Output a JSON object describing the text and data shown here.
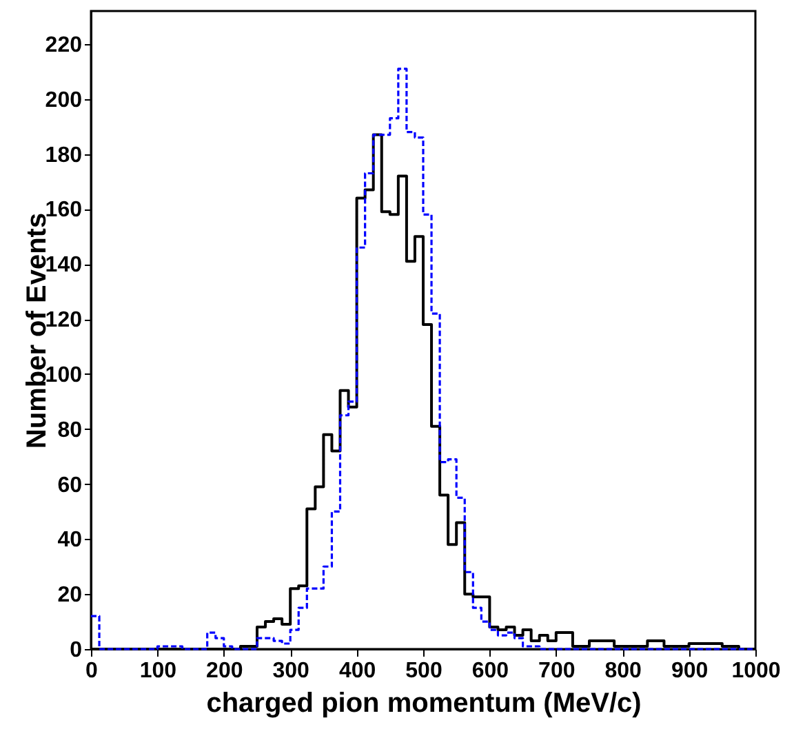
{
  "chart_data": {
    "type": "histogram",
    "xlabel": "charged pion momentum (MeV/c)",
    "ylabel": "Number of Events",
    "bins": [
      0,
      12.5,
      25,
      37.5,
      50,
      62.5,
      75,
      87.5,
      100,
      112.5,
      125,
      137.5,
      150,
      162.5,
      175,
      187.5,
      200,
      212.5,
      225,
      237.5,
      250,
      262.5,
      275,
      287.5,
      300,
      312.5,
      325,
      337.5,
      350,
      362.5,
      375,
      387.5,
      400,
      412.5,
      425,
      437.5,
      450,
      462.5,
      475,
      487.5,
      500,
      512.5,
      525,
      537.5,
      550,
      562.5,
      575,
      587.5,
      600,
      612.5,
      625,
      637.5,
      650,
      662.5,
      675,
      687.5,
      700,
      712.5,
      725,
      737.5,
      750,
      762.5,
      775,
      787.5,
      800,
      812.5,
      825,
      837.5,
      850,
      862.5,
      875,
      887.5,
      900,
      912.5,
      925,
      937.5,
      950,
      962.5,
      975,
      987.5,
      1000
    ],
    "series": [
      {
        "color": "#000000",
        "line_style": "solid",
        "values": [
          0,
          0,
          0,
          0,
          0,
          0,
          0,
          0,
          0,
          0,
          0,
          0,
          0,
          0,
          0,
          0,
          0,
          0,
          1,
          1,
          8,
          10,
          11,
          9,
          22,
          23,
          51,
          59,
          78,
          72,
          94,
          88,
          164,
          167,
          187,
          159,
          158,
          172,
          141,
          150,
          118,
          81,
          56,
          38,
          46,
          20,
          19,
          19,
          8,
          7,
          8,
          5,
          7,
          3,
          5,
          3,
          6,
          6,
          1,
          1,
          3,
          3,
          3,
          1,
          1,
          1,
          1,
          3,
          3,
          1,
          1,
          1,
          2,
          2,
          2,
          2,
          1,
          1,
          0,
          0
        ]
      },
      {
        "color": "#0000ff",
        "line_style": "dashed",
        "values": [
          12,
          0,
          0,
          0,
          0,
          0,
          0,
          0,
          1,
          1,
          1,
          0,
          0,
          0,
          6,
          4,
          1,
          0,
          0,
          0,
          4,
          4,
          3,
          2,
          7,
          15,
          22,
          22,
          30,
          50,
          85,
          90,
          146,
          173,
          187,
          187,
          193,
          211,
          188,
          186,
          158,
          122,
          68,
          69,
          55,
          28,
          15,
          10,
          7,
          5,
          6,
          4,
          1,
          1,
          0,
          0,
          0,
          0,
          0,
          0,
          0,
          0,
          0,
          0,
          0,
          0,
          0,
          0,
          0,
          0,
          0,
          0,
          0,
          0,
          0,
          0,
          0,
          0,
          0,
          0
        ]
      }
    ],
    "xlim": [
      0,
      1000
    ],
    "xticks": [
      0,
      100,
      200,
      300,
      400,
      500,
      600,
      700,
      800,
      900,
      1000
    ],
    "ylim": [
      0,
      232
    ],
    "yticks": [
      0,
      20,
      40,
      60,
      80,
      100,
      120,
      140,
      160,
      180,
      200,
      220
    ],
    "grid": false
  }
}
